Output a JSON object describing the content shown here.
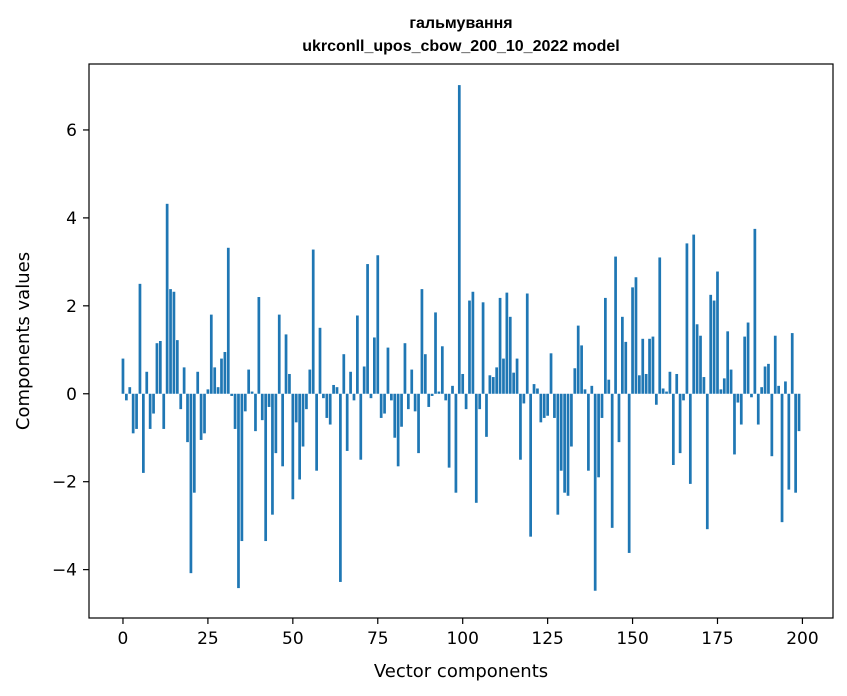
{
  "chart_data": {
    "type": "bar",
    "title": "гальмування",
    "subtitle": "ukrconll_upos_cbow_200_10_2022 model",
    "xlabel": "Vector components",
    "ylabel": "Components values",
    "xlim": [
      -10,
      209
    ],
    "ylim": [
      -5.1,
      7.5
    ],
    "xticks": [
      0,
      25,
      50,
      75,
      100,
      125,
      150,
      175,
      200
    ],
    "yticks": [
      -4,
      -2,
      0,
      2,
      4,
      6
    ],
    "ytick_labels": [
      "−4",
      "−2",
      "0",
      "2",
      "4",
      "6"
    ],
    "grid": false,
    "bar_color": "#1f77b4",
    "x": [
      0,
      1,
      2,
      3,
      4,
      5,
      6,
      7,
      8,
      9,
      10,
      11,
      12,
      13,
      14,
      15,
      16,
      17,
      18,
      19,
      20,
      21,
      22,
      23,
      24,
      25,
      26,
      27,
      28,
      29,
      30,
      31,
      32,
      33,
      34,
      35,
      36,
      37,
      38,
      39,
      40,
      41,
      42,
      43,
      44,
      45,
      46,
      47,
      48,
      49,
      50,
      51,
      52,
      53,
      54,
      55,
      56,
      57,
      58,
      59,
      60,
      61,
      62,
      63,
      64,
      65,
      66,
      67,
      68,
      69,
      70,
      71,
      72,
      73,
      74,
      75,
      76,
      77,
      78,
      79,
      80,
      81,
      82,
      83,
      84,
      85,
      86,
      87,
      88,
      89,
      90,
      91,
      92,
      93,
      94,
      95,
      96,
      97,
      98,
      99,
      100,
      101,
      102,
      103,
      104,
      105,
      106,
      107,
      108,
      109,
      110,
      111,
      112,
      113,
      114,
      115,
      116,
      117,
      118,
      119,
      120,
      121,
      122,
      123,
      124,
      125,
      126,
      127,
      128,
      129,
      130,
      131,
      132,
      133,
      134,
      135,
      136,
      137,
      138,
      139,
      140,
      141,
      142,
      143,
      144,
      145,
      146,
      147,
      148,
      149,
      150,
      151,
      152,
      153,
      154,
      155,
      156,
      157,
      158,
      159,
      160,
      161,
      162,
      163,
      164,
      165,
      166,
      167,
      168,
      169,
      170,
      171,
      172,
      173,
      174,
      175,
      176,
      177,
      178,
      179,
      180,
      181,
      182,
      183,
      184,
      185,
      186,
      187,
      188,
      189,
      190,
      191,
      192,
      193,
      194,
      195,
      196,
      197,
      198,
      199
    ],
    "values": [
      0.8,
      -0.15,
      0.15,
      -0.9,
      -0.8,
      2.5,
      -1.8,
      0.5,
      -0.8,
      -0.45,
      1.15,
      1.2,
      -0.8,
      4.32,
      2.38,
      2.32,
      1.22,
      -0.35,
      0.6,
      -1.1,
      -4.08,
      -2.25,
      0.5,
      -1.05,
      -0.9,
      0.1,
      1.8,
      0.6,
      0.15,
      0.8,
      0.95,
      3.32,
      -0.05,
      -0.8,
      -4.42,
      -3.35,
      -0.4,
      0.55,
      0.05,
      -0.85,
      2.2,
      -0.6,
      -3.35,
      -0.3,
      -2.75,
      -1.35,
      1.8,
      -1.65,
      1.35,
      0.45,
      -2.4,
      -0.65,
      -1.95,
      -1.2,
      -0.35,
      0.55,
      3.28,
      -1.75,
      1.5,
      -0.1,
      -0.55,
      -0.7,
      0.2,
      0.15,
      -4.28,
      0.9,
      -1.3,
      0.5,
      -0.15,
      1.78,
      -1.5,
      0.62,
      2.95,
      -0.1,
      1.28,
      3.15,
      -0.55,
      -0.45,
      1.05,
      -0.15,
      -1.0,
      -1.65,
      -0.75,
      1.15,
      -0.35,
      0.55,
      -0.4,
      -1.35,
      2.38,
      0.9,
      -0.3,
      -0.05,
      1.85,
      0.05,
      1.08,
      -0.15,
      -1.68,
      0.18,
      -2.25,
      7.02,
      0.45,
      -0.35,
      2.12,
      2.32,
      -2.48,
      -0.35,
      2.08,
      -0.98,
      0.42,
      0.38,
      0.6,
      2.18,
      0.8,
      2.3,
      1.75,
      0.48,
      0.8,
      -1.5,
      -0.22,
      2.28,
      -3.25,
      0.22,
      0.12,
      -0.65,
      -0.55,
      -0.5,
      0.92,
      -0.55,
      -2.75,
      -1.75,
      -2.25,
      -2.32,
      -1.2,
      0.58,
      1.55,
      1.1,
      0.1,
      -1.75,
      0.18,
      -4.48,
      -1.9,
      -0.55,
      2.18,
      0.32,
      -3.05,
      3.12,
      -1.1,
      1.75,
      1.18,
      -3.62,
      2.42,
      2.65,
      0.42,
      1.25,
      0.45,
      1.25,
      1.3,
      -0.25,
      3.1,
      0.12,
      0.05,
      0.5,
      -1.62,
      0.45,
      -1.35,
      -0.15,
      3.42,
      -2.05,
      3.62,
      1.58,
      1.32,
      0.38,
      -3.08,
      2.25,
      2.12,
      2.78,
      0.1,
      0.35,
      1.42,
      0.55,
      -1.38,
      -0.2,
      -0.7,
      1.3,
      1.62,
      -0.08,
      3.75,
      -0.7,
      0.15,
      0.62,
      0.68,
      -1.42,
      1.32,
      0.18,
      -2.92,
      0.28,
      -2.18,
      1.38,
      -2.25,
      -0.85
    ]
  }
}
